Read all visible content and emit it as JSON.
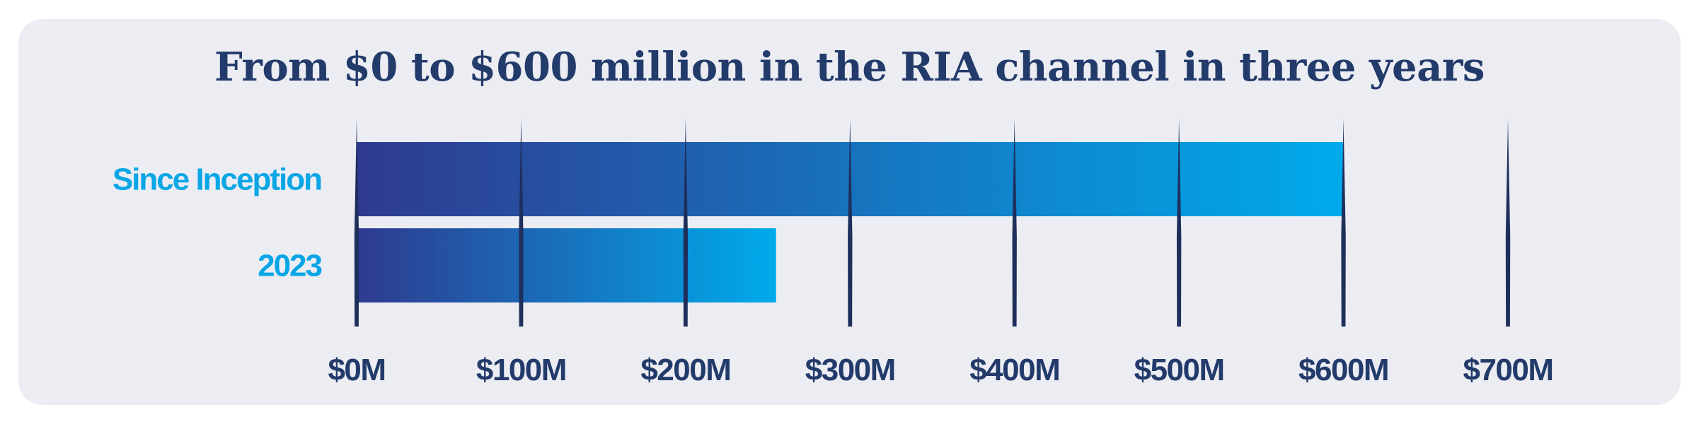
{
  "chart_data": {
    "type": "bar",
    "orientation": "horizontal",
    "title": "From $0 to $600 million in the RIA channel in three years",
    "categories": [
      "Since Inception",
      "2023"
    ],
    "values": [
      600,
      255
    ],
    "unit": "$M",
    "xlim": [
      0,
      700
    ],
    "xticks": [
      0,
      100,
      200,
      300,
      400,
      500,
      600,
      700
    ],
    "xtick_labels": [
      "$0M",
      "$100M",
      "$200M",
      "$300M",
      "$400M",
      "$500M",
      "$600M",
      "$700M"
    ],
    "grid": true,
    "colors": {
      "bar_gradient_start": "#2f3a8f",
      "bar_gradient_end": "#00aaeb",
      "category_label": "#0aa6e6",
      "tick_label": "#233b6b",
      "tick_mark": "#1e2f5c",
      "panel_background": "#ecedf3"
    }
  }
}
